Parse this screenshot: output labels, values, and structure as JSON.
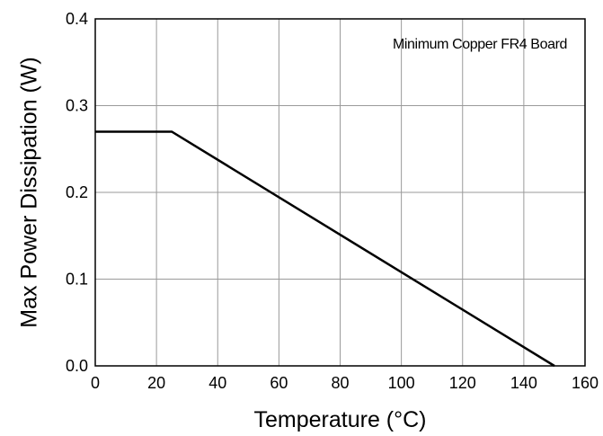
{
  "chart_data": {
    "type": "line",
    "title": "",
    "xlabel": "Temperature (°C)",
    "ylabel": "Max Power Dissipation (W)",
    "xlim": [
      0,
      160
    ],
    "ylim": [
      0,
      0.4
    ],
    "x_ticks": [
      0,
      20,
      40,
      60,
      80,
      100,
      120,
      140,
      160
    ],
    "y_ticks": [
      "0.0",
      "0.1",
      "0.2",
      "0.3",
      "0.4"
    ],
    "grid": true,
    "annotation": "Minimum Copper FR4 Board",
    "series": [
      {
        "x": [
          0,
          25,
          150
        ],
        "y": [
          0.27,
          0.27,
          0
        ]
      }
    ]
  }
}
